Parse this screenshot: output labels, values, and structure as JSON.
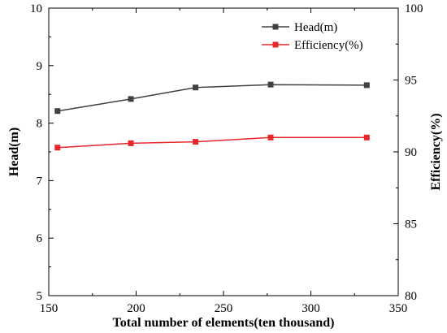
{
  "chart_data": {
    "type": "line",
    "title": "",
    "xlabel": "Total number of elements(ten thousand)",
    "ylabel": "Head(m)",
    "y2label": "Efficiency(%)",
    "xlim": [
      150,
      350
    ],
    "ylim": [
      5,
      10
    ],
    "y2lim": [
      80,
      100
    ],
    "xticks": [
      "150",
      "200",
      "250",
      "300",
      "350"
    ],
    "yticks": [
      "5",
      "6",
      "7",
      "8",
      "9",
      "10"
    ],
    "y2ticks": [
      "80",
      "85",
      "90",
      "95",
      "100"
    ],
    "grid": false,
    "legend": "top-right",
    "x": [
      155,
      197,
      234,
      277,
      332
    ],
    "series": [
      {
        "name": "Head(m)",
        "axis": "left",
        "color": "#404040",
        "values": [
          8.21,
          8.42,
          8.62,
          8.67,
          8.66
        ]
      },
      {
        "name": "Efficiency(%)",
        "axis": "right",
        "color": "#e8262a",
        "values": [
          90.3,
          90.6,
          90.7,
          91.0,
          91.0
        ]
      }
    ]
  }
}
